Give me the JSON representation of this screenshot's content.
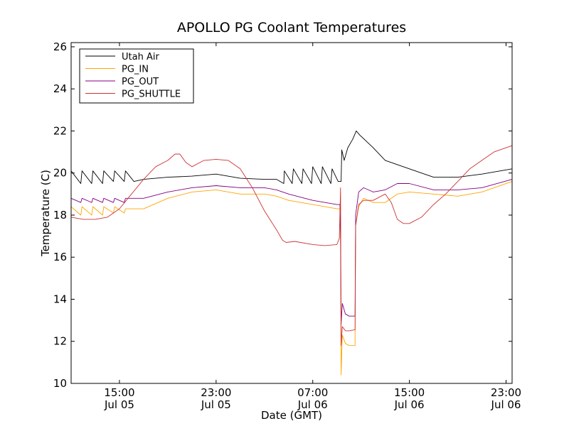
{
  "chart_data": {
    "type": "line",
    "title": "APOLLO PG Coolant Temperatures",
    "xlabel": "Date (GMT)",
    "ylabel": "Temperature (C)",
    "xunit": "hours since Jul 05 11:00 GMT",
    "xlim": [
      0,
      36.5
    ],
    "ylim": [
      10,
      26.2
    ],
    "yticks": [
      10,
      12,
      14,
      16,
      18,
      20,
      22,
      24,
      26
    ],
    "xticks": [
      {
        "x": 4,
        "time": "15:00",
        "date": "Jul 05"
      },
      {
        "x": 12,
        "time": "23:00",
        "date": "Jul 05"
      },
      {
        "x": 20,
        "time": "07:00",
        "date": "Jul 06"
      },
      {
        "x": 28,
        "time": "15:00",
        "date": "Jul 06"
      },
      {
        "x": 36,
        "time": "23:00",
        "date": "Jul 06"
      }
    ],
    "grid": false,
    "legend_position": "top-left",
    "series": [
      {
        "name": "Utah Air",
        "color": "#000000",
        "points": [
          [
            0,
            20.1
          ],
          [
            0.8,
            19.5
          ],
          [
            0.9,
            20.1
          ],
          [
            1.7,
            19.5
          ],
          [
            1.8,
            20.1
          ],
          [
            2.6,
            19.5
          ],
          [
            2.7,
            20.1
          ],
          [
            3.5,
            19.6
          ],
          [
            3.6,
            20.1
          ],
          [
            4.4,
            19.6
          ],
          [
            4.5,
            20.1
          ],
          [
            5.2,
            19.6
          ],
          [
            6,
            19.7
          ],
          [
            8,
            19.8
          ],
          [
            10,
            19.85
          ],
          [
            12,
            19.95
          ],
          [
            14,
            19.75
          ],
          [
            16,
            19.7
          ],
          [
            17,
            19.7
          ],
          [
            17.6,
            19.5
          ],
          [
            17.65,
            20.1
          ],
          [
            18.3,
            19.5
          ],
          [
            18.4,
            20.2
          ],
          [
            19.1,
            19.5
          ],
          [
            19.2,
            20.2
          ],
          [
            19.9,
            19.5
          ],
          [
            20,
            20.3
          ],
          [
            20.7,
            19.5
          ],
          [
            20.8,
            20.3
          ],
          [
            21.5,
            19.5
          ],
          [
            21.6,
            20.2
          ],
          [
            22.1,
            19.6
          ],
          [
            22.35,
            19.6
          ],
          [
            22.4,
            21.1
          ],
          [
            22.6,
            20.6
          ],
          [
            22.9,
            21.2
          ],
          [
            23.3,
            21.6
          ],
          [
            23.6,
            22.0
          ],
          [
            23.9,
            21.8
          ],
          [
            25,
            21.2
          ],
          [
            26,
            20.6
          ],
          [
            28,
            20.2
          ],
          [
            30,
            19.8
          ],
          [
            32,
            19.8
          ],
          [
            34,
            19.95
          ],
          [
            36.5,
            20.2
          ]
        ]
      },
      {
        "name": "PG_IN",
        "color": "#ffa500",
        "points": [
          [
            0,
            18.4
          ],
          [
            0.8,
            18.0
          ],
          [
            0.9,
            18.4
          ],
          [
            1.7,
            18.0
          ],
          [
            1.8,
            18.4
          ],
          [
            2.6,
            18.0
          ],
          [
            2.7,
            18.4
          ],
          [
            3.5,
            18.1
          ],
          [
            3.6,
            18.4
          ],
          [
            4.4,
            18.1
          ],
          [
            4.5,
            18.3
          ],
          [
            6,
            18.3
          ],
          [
            8,
            18.8
          ],
          [
            10,
            19.1
          ],
          [
            12,
            19.2
          ],
          [
            14,
            19.0
          ],
          [
            16,
            19.0
          ],
          [
            17,
            18.9
          ],
          [
            18,
            18.7
          ],
          [
            20,
            18.5
          ],
          [
            22,
            18.3
          ],
          [
            22.25,
            18.3
          ],
          [
            22.3,
            16.6
          ],
          [
            22.35,
            10.4
          ],
          [
            22.45,
            12.3
          ],
          [
            22.7,
            11.9
          ],
          [
            23,
            11.8
          ],
          [
            23.5,
            11.8
          ],
          [
            23.55,
            17.5
          ],
          [
            23.8,
            18.4
          ],
          [
            24.2,
            18.8
          ],
          [
            25,
            18.6
          ],
          [
            26,
            18.6
          ],
          [
            27,
            19.0
          ],
          [
            28,
            19.1
          ],
          [
            30,
            19.0
          ],
          [
            32,
            18.9
          ],
          [
            34,
            19.1
          ],
          [
            36.5,
            19.6
          ]
        ]
      },
      {
        "name": "PG_OUT",
        "color": "#800080",
        "points": [
          [
            0,
            18.8
          ],
          [
            0.8,
            18.6
          ],
          [
            0.9,
            18.8
          ],
          [
            1.7,
            18.6
          ],
          [
            1.8,
            18.8
          ],
          [
            2.6,
            18.6
          ],
          [
            2.7,
            18.8
          ],
          [
            3.5,
            18.6
          ],
          [
            3.6,
            18.8
          ],
          [
            4.4,
            18.6
          ],
          [
            4.5,
            18.8
          ],
          [
            6,
            18.8
          ],
          [
            8,
            19.1
          ],
          [
            10,
            19.3
          ],
          [
            12,
            19.4
          ],
          [
            14,
            19.3
          ],
          [
            16,
            19.3
          ],
          [
            17,
            19.2
          ],
          [
            18,
            19.0
          ],
          [
            20,
            18.7
          ],
          [
            22,
            18.5
          ],
          [
            22.25,
            18.5
          ],
          [
            22.3,
            17.0
          ],
          [
            22.35,
            12.8
          ],
          [
            22.45,
            13.8
          ],
          [
            22.7,
            13.3
          ],
          [
            23,
            13.2
          ],
          [
            23.5,
            13.2
          ],
          [
            23.55,
            18.0
          ],
          [
            23.8,
            19.1
          ],
          [
            24.2,
            19.3
          ],
          [
            25,
            19.1
          ],
          [
            26,
            19.2
          ],
          [
            27,
            19.5
          ],
          [
            28,
            19.5
          ],
          [
            30,
            19.2
          ],
          [
            32,
            19.2
          ],
          [
            34,
            19.3
          ],
          [
            36.5,
            19.7
          ]
        ]
      },
      {
        "name": "PG_SHUTTLE",
        "color": "#cd3333",
        "points": [
          [
            0,
            17.9
          ],
          [
            1,
            17.8
          ],
          [
            2,
            17.8
          ],
          [
            3,
            17.9
          ],
          [
            4,
            18.3
          ],
          [
            5,
            19.0
          ],
          [
            6,
            19.7
          ],
          [
            7,
            20.3
          ],
          [
            8,
            20.6
          ],
          [
            8.6,
            20.9
          ],
          [
            9,
            20.9
          ],
          [
            9.5,
            20.5
          ],
          [
            10,
            20.3
          ],
          [
            11,
            20.6
          ],
          [
            12,
            20.65
          ],
          [
            13,
            20.6
          ],
          [
            14,
            20.2
          ],
          [
            15,
            19.3
          ],
          [
            16,
            18.2
          ],
          [
            17,
            17.3
          ],
          [
            17.5,
            16.8
          ],
          [
            17.8,
            16.7
          ],
          [
            18.5,
            16.75
          ],
          [
            20,
            16.6
          ],
          [
            21,
            16.55
          ],
          [
            22,
            16.6
          ],
          [
            22.2,
            16.9
          ],
          [
            22.3,
            19.3
          ],
          [
            22.35,
            11.8
          ],
          [
            22.45,
            12.7
          ],
          [
            22.7,
            12.5
          ],
          [
            23,
            12.5
          ],
          [
            23.5,
            12.55
          ],
          [
            23.55,
            17.5
          ],
          [
            23.8,
            18.5
          ],
          [
            24.2,
            18.7
          ],
          [
            25,
            18.7
          ],
          [
            26,
            19.0
          ],
          [
            26.5,
            18.6
          ],
          [
            27,
            17.8
          ],
          [
            27.5,
            17.6
          ],
          [
            28,
            17.6
          ],
          [
            29,
            17.9
          ],
          [
            30,
            18.5
          ],
          [
            31,
            19.0
          ],
          [
            32,
            19.6
          ],
          [
            33,
            20.2
          ],
          [
            34,
            20.6
          ],
          [
            35,
            21.0
          ],
          [
            36,
            21.2
          ],
          [
            36.5,
            21.3
          ]
        ]
      }
    ]
  }
}
